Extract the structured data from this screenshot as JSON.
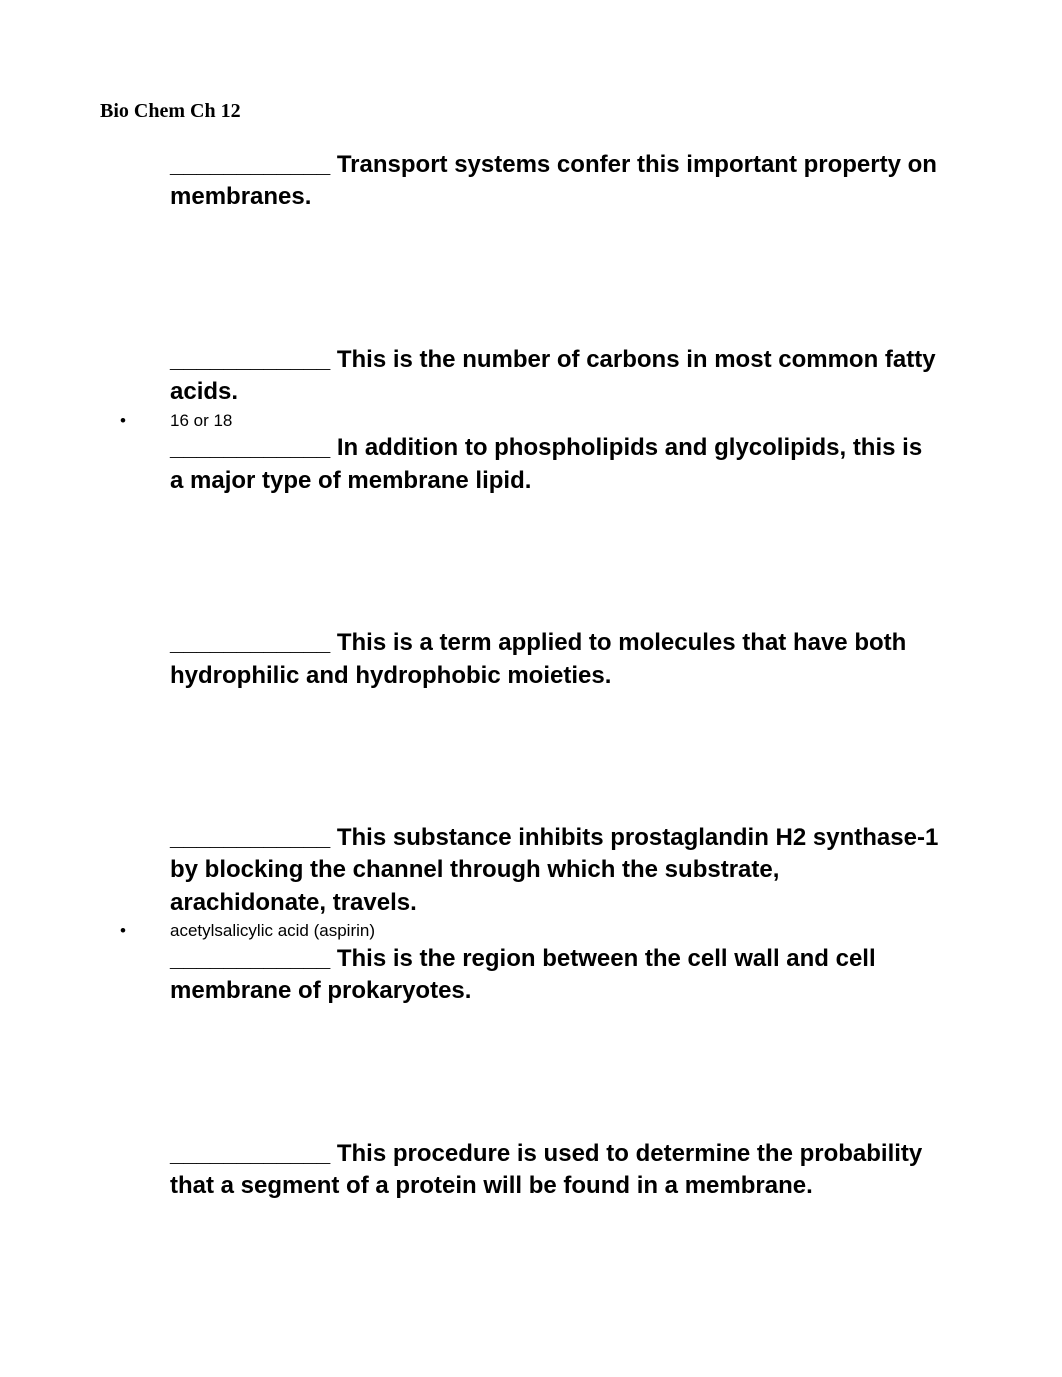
{
  "title": "Bio Chem Ch 12",
  "blank": "____________",
  "items": [
    {
      "question_after": " Transport systems confer this important property on membranes.",
      "answer": null,
      "spacer": "lg"
    },
    {
      "question_after": " This is the number of carbons in most common fatty acids.",
      "answer": "16 or 18",
      "spacer": "md"
    },
    {
      "question_after": " In addition to phospholipids and glycolipids, this is a major type of membrane lipid.",
      "answer": null,
      "spacer": "lg"
    },
    {
      "question_after": " This is a term applied to molecules that have both hydrophilic and hydrophobic moieties.",
      "answer": null,
      "spacer": "lg"
    },
    {
      "question_after": " This substance inhibits prostaglandin H2 synthase-1 by blocking the channel through which the substrate, arachidonate, travels.",
      "answer": "acetylsalicylic acid (aspirin)",
      "spacer": "md"
    },
    {
      "question_after": " This is the region between the cell wall and cell membrane of prokaryotes.",
      "answer": null,
      "spacer": "lg"
    },
    {
      "question_after": " This procedure is used to determine the probability that a segment of a protein will be found in a membrane.",
      "answer": null,
      "spacer": "none"
    }
  ],
  "bullet_char": "•"
}
